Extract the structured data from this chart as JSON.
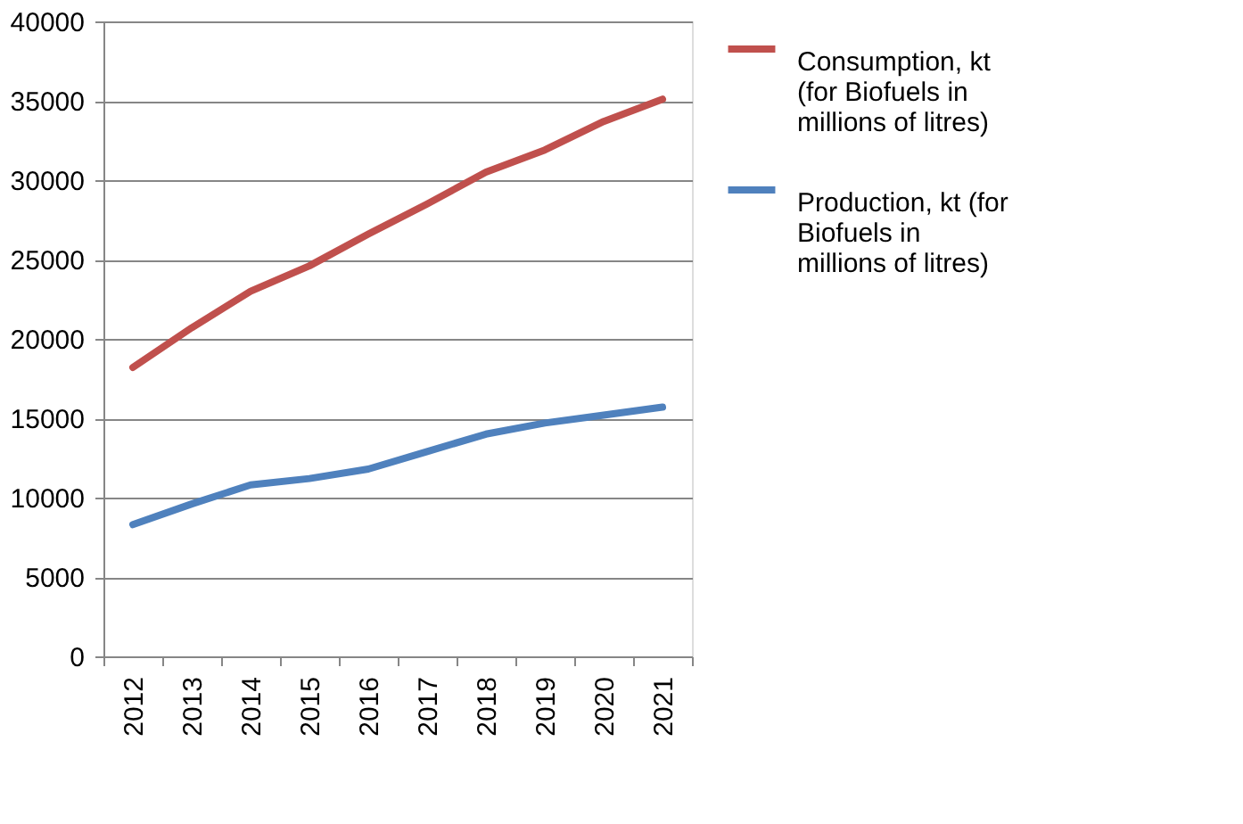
{
  "chart_data": {
    "type": "line",
    "categories": [
      "2012",
      "2013",
      "2014",
      "2015",
      "2016",
      "2017",
      "2018",
      "2019",
      "2020",
      "2021"
    ],
    "series": [
      {
        "name": "Consumption, kt (for Biofuels in millions of litres)",
        "color": "#c0504d",
        "values": [
          18200,
          20700,
          23000,
          24600,
          26600,
          28500,
          30500,
          31900,
          33700,
          35100
        ]
      },
      {
        "name": "Production, kt (for Biofuels in millions of litres)",
        "color": "#4f81bd",
        "values": [
          8300,
          9600,
          10800,
          11200,
          11800,
          12900,
          14000,
          14700,
          15200,
          15700
        ]
      }
    ],
    "ylim": [
      0,
      40000
    ],
    "yticks": [
      0,
      5000,
      10000,
      15000,
      20000,
      25000,
      30000,
      35000,
      40000
    ],
    "grid": "y",
    "legend": "right",
    "marker": "none",
    "line_style": "solid"
  }
}
